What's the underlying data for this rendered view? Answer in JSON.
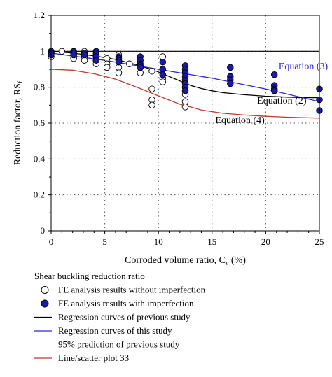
{
  "chart_data": {
    "type": "scatter",
    "xlabel": "Corroded volume ratio, C",
    "xlabel_sub": "v",
    "xlabel_unit": " (%)",
    "ylabel": "Reduction factor, RS",
    "ylabel_sub": "f",
    "xlim": [
      0,
      25
    ],
    "ylim": [
      0,
      1.2
    ],
    "xticks": [
      0,
      5,
      10,
      15,
      20,
      25
    ],
    "yticks": [
      0,
      0.2,
      0.4,
      0.6,
      0.8,
      1,
      1.2
    ],
    "ytick_labels": [
      "0",
      "0.2",
      "0.4",
      "0.6",
      "0.8",
      "1",
      "1.2"
    ],
    "grid": true,
    "legend_position": "below",
    "legend_title": "Shear buckling reduction ratio",
    "reference_line": {
      "y": 1.0,
      "color": "#000000"
    },
    "series": [
      {
        "name": "FE analysis results without imperfection",
        "kind": "scatter",
        "marker": "open-circle",
        "color": "#000000",
        "points": [
          [
            0,
            0.99
          ],
          [
            0,
            0.97
          ],
          [
            1,
            1.0
          ],
          [
            2.1,
            0.98
          ],
          [
            2.1,
            0.96
          ],
          [
            3.1,
            1.0
          ],
          [
            3.1,
            0.97
          ],
          [
            3.1,
            0.95
          ],
          [
            4.2,
            0.97
          ],
          [
            4.2,
            0.95
          ],
          [
            4.2,
            0.93
          ],
          [
            5.2,
            0.96
          ],
          [
            5.2,
            0.93
          ],
          [
            5.2,
            0.91
          ],
          [
            6.3,
            0.98
          ],
          [
            6.3,
            0.91
          ],
          [
            6.3,
            0.88
          ],
          [
            7.3,
            0.93
          ],
          [
            8.3,
            0.91
          ],
          [
            8.3,
            0.88
          ],
          [
            9.4,
            0.89
          ],
          [
            9.4,
            0.79
          ],
          [
            9.4,
            0.73
          ],
          [
            9.4,
            0.7
          ],
          [
            10.4,
            0.97
          ],
          [
            10.4,
            0.9
          ],
          [
            10.4,
            0.85
          ],
          [
            10.4,
            0.83
          ],
          [
            12.5,
            0.8
          ],
          [
            12.5,
            0.76
          ],
          [
            12.5,
            0.72
          ],
          [
            12.5,
            0.69
          ]
        ]
      },
      {
        "name": "FE analysis results with imperfection",
        "kind": "scatter",
        "marker": "filled-circle",
        "color": "#1a1aa6",
        "points": [
          [
            0,
            1.0
          ],
          [
            0,
            0.99
          ],
          [
            0,
            0.98
          ],
          [
            2.1,
            1.0
          ],
          [
            2.1,
            0.99
          ],
          [
            2.1,
            0.98
          ],
          [
            3.1,
            0.99
          ],
          [
            3.1,
            0.98
          ],
          [
            4.2,
            1.0
          ],
          [
            4.2,
            0.99
          ],
          [
            4.2,
            0.98
          ],
          [
            4.2,
            0.97
          ],
          [
            4.2,
            0.95
          ],
          [
            6.3,
            0.97
          ],
          [
            6.3,
            0.96
          ],
          [
            6.3,
            0.95
          ],
          [
            6.3,
            0.94
          ],
          [
            8.3,
            0.97
          ],
          [
            8.3,
            0.95
          ],
          [
            8.3,
            0.93
          ],
          [
            8.3,
            0.92
          ],
          [
            8.3,
            0.91
          ],
          [
            10.4,
            0.94
          ],
          [
            10.4,
            0.9
          ],
          [
            10.4,
            0.87
          ],
          [
            12.5,
            0.92
          ],
          [
            12.5,
            0.9
          ],
          [
            12.5,
            0.88
          ],
          [
            12.5,
            0.86
          ],
          [
            12.5,
            0.84
          ],
          [
            12.5,
            0.82
          ],
          [
            12.5,
            0.8
          ],
          [
            12.5,
            0.78
          ],
          [
            16.7,
            0.91
          ],
          [
            16.7,
            0.86
          ],
          [
            16.7,
            0.84
          ],
          [
            16.7,
            0.82
          ],
          [
            20.8,
            0.87
          ],
          [
            20.8,
            0.81
          ],
          [
            20.8,
            0.79
          ],
          [
            20.8,
            0.78
          ],
          [
            25,
            0.79
          ],
          [
            25,
            0.73
          ],
          [
            25,
            0.67
          ]
        ]
      },
      {
        "name": "Regression curves of previous study",
        "kind": "line",
        "color": "#000000",
        "points": [
          [
            0,
            1.0
          ],
          [
            2,
            0.99
          ],
          [
            4,
            0.975
          ],
          [
            6,
            0.955
          ],
          [
            8,
            0.925
          ],
          [
            10,
            0.885
          ],
          [
            11,
            0.86
          ],
          [
            12,
            0.835
          ],
          [
            13,
            0.81
          ],
          [
            14,
            0.793
          ],
          [
            15,
            0.78
          ],
          [
            16,
            0.77
          ],
          [
            18,
            0.758
          ],
          [
            20,
            0.75
          ],
          [
            22,
            0.745
          ],
          [
            24,
            0.742
          ],
          [
            25,
            0.742
          ]
        ]
      },
      {
        "name": "Regression curves of this study",
        "kind": "line",
        "color": "#2b2bd6",
        "points": [
          [
            0,
            0.99
          ],
          [
            5,
            0.95
          ],
          [
            10,
            0.9
          ],
          [
            15,
            0.85
          ],
          [
            20,
            0.79
          ],
          [
            25,
            0.72
          ]
        ]
      },
      {
        "name": "95% prediction of previous study",
        "kind": "legend-only"
      },
      {
        "name": "Line/scatter plot 33",
        "kind": "line",
        "color": "#c0392b",
        "points": [
          [
            0,
            0.9
          ],
          [
            2,
            0.895
          ],
          [
            4,
            0.875
          ],
          [
            6,
            0.845
          ],
          [
            8,
            0.8
          ],
          [
            10,
            0.752
          ],
          [
            12,
            0.705
          ],
          [
            13,
            0.69
          ],
          [
            14,
            0.673
          ],
          [
            16,
            0.655
          ],
          [
            18,
            0.645
          ],
          [
            20,
            0.638
          ],
          [
            22,
            0.633
          ],
          [
            25,
            0.628
          ]
        ]
      }
    ],
    "annotations": [
      {
        "text": "Equation (3)",
        "x": 21.2,
        "y": 0.9,
        "color": "#2b2bd6"
      },
      {
        "text": "Equation (2)",
        "x": 19.2,
        "y": 0.71,
        "color": "#000000"
      },
      {
        "text": "Equation (4)",
        "x": 15.3,
        "y": 0.6,
        "color": "#000000"
      }
    ]
  }
}
